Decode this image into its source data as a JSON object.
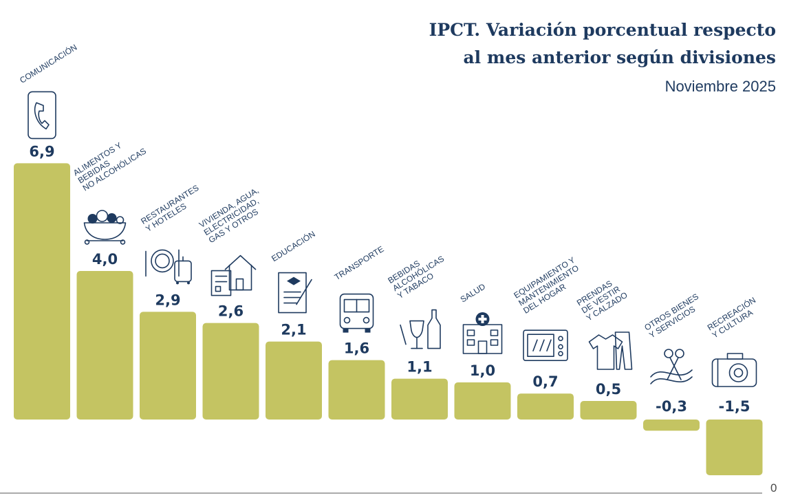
{
  "chart_data": {
    "type": "bar",
    "title_lines": [
      "IPCT. Variación porcentual respecto",
      "al mes anterior según divisiones"
    ],
    "subtitle": "Noviembre 2025",
    "bar_color": "#c4c462",
    "text_color": "#1e3a5f",
    "ylim": [
      -1.5,
      6.9
    ],
    "baseline_label": "0",
    "categories": [
      {
        "label": [
          "COMUNICACIÓN"
        ],
        "value": 6.9,
        "value_label": "6,9",
        "icon": "phone-icon"
      },
      {
        "label": [
          "ALIMENTOS Y",
          "BEBIDAS",
          "NO ALCOHÓLICAS"
        ],
        "value": 4.0,
        "value_label": "4,0",
        "icon": "food-bowl-icon"
      },
      {
        "label": [
          "RESTAURANTES",
          "Y HOTELES"
        ],
        "value": 2.9,
        "value_label": "2,9",
        "icon": "plate-luggage-icon"
      },
      {
        "label": [
          "VIVIENDA, AGUA,",
          "ELECTRICIDAD,",
          "GAS Y OTROS"
        ],
        "value": 2.6,
        "value_label": "2,6",
        "icon": "house-bill-icon"
      },
      {
        "label": [
          "EDUCACIÓN"
        ],
        "value": 2.1,
        "value_label": "2,1",
        "icon": "diploma-icon"
      },
      {
        "label": [
          "TRANSPORTE"
        ],
        "value": 1.6,
        "value_label": "1,6",
        "icon": "bus-icon"
      },
      {
        "label": [
          "BEBIDAS",
          "ALCOHÓLICAS",
          "Y TABACO"
        ],
        "value": 1.1,
        "value_label": "1,1",
        "icon": "wine-bottle-icon"
      },
      {
        "label": [
          "SALUD"
        ],
        "value": 1.0,
        "value_label": "1,0",
        "icon": "hospital-icon"
      },
      {
        "label": [
          "EQUIPAMIENTO Y",
          "MANTENIMIENTO",
          "DEL HOGAR"
        ],
        "value": 0.7,
        "value_label": "0,7",
        "icon": "microwave-icon"
      },
      {
        "label": [
          "PRENDAS",
          "DE VESTIR",
          "Y CALZADO"
        ],
        "value": 0.5,
        "value_label": "0,5",
        "icon": "clothes-icon"
      },
      {
        "label": [
          "OTROS BIENES",
          "Y SERVICIOS"
        ],
        "value": -0.3,
        "value_label": "-0,3",
        "icon": "scissors-ribbon-icon"
      },
      {
        "label": [
          "RECREACIÓN",
          "Y CULTURA"
        ],
        "value": -1.5,
        "value_label": "-1,5",
        "icon": "camera-icon"
      }
    ]
  }
}
